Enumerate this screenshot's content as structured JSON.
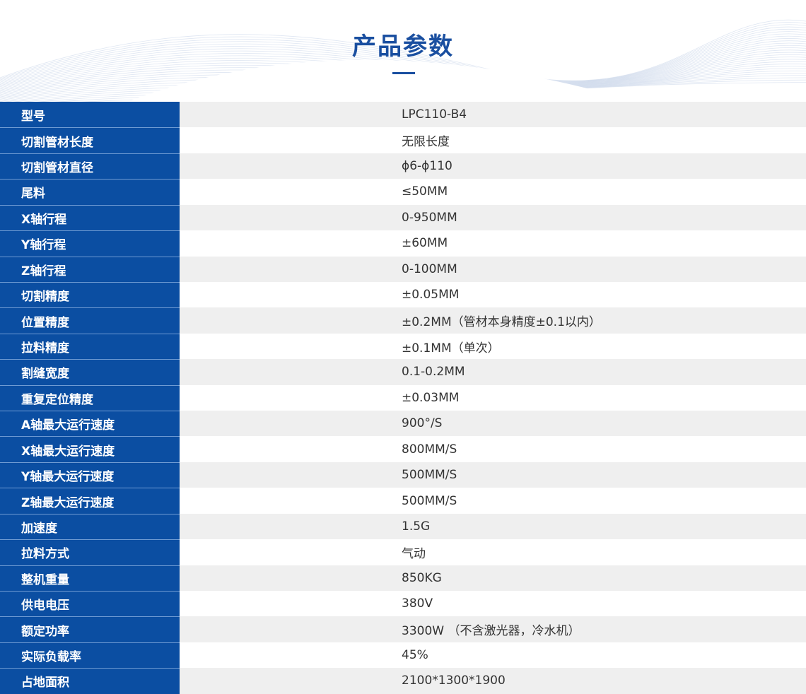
{
  "header": {
    "title": "产品参数"
  },
  "colors": {
    "accent": "#0b4ea2",
    "title": "#1a4fa0",
    "row_alt": "#efefef"
  },
  "specs": [
    {
      "label": "型号",
      "value": "LPC110-B4"
    },
    {
      "label": "切割管材长度",
      "value": "无限长度"
    },
    {
      "label": "切割管材直径",
      "value": "ϕ6-ϕ110"
    },
    {
      "label": "尾料",
      "value": "≤50MM"
    },
    {
      "label": "X轴行程",
      "value": "0-950MM"
    },
    {
      "label": "Y轴行程",
      "value": "±60MM"
    },
    {
      "label": "Z轴行程",
      "value": "0-100MM"
    },
    {
      "label": "切割精度",
      "value": "±0.05MM"
    },
    {
      "label": "位置精度",
      "value": "±0.2MM（管材本身精度±0.1以内）"
    },
    {
      "label": "拉料精度",
      "value": "±0.1MM（单次）"
    },
    {
      "label": "割缝宽度",
      "value": "0.1-0.2MM"
    },
    {
      "label": "重复定位精度",
      "value": "±0.03MM"
    },
    {
      "label": "A轴最大运行速度",
      "value": "900°/S"
    },
    {
      "label": "X轴最大运行速度",
      "value": "800MM/S"
    },
    {
      "label": "Y轴最大运行速度",
      "value": "500MM/S"
    },
    {
      "label": "Z轴最大运行速度",
      "value": "500MM/S"
    },
    {
      "label": "加速度",
      "value": "1.5G"
    },
    {
      "label": "拉料方式",
      "value": "气动"
    },
    {
      "label": "整机重量",
      "value": "850KG"
    },
    {
      "label": "供电电压",
      "value": "380V"
    },
    {
      "label": "额定功率",
      "value": "3300W （不含激光器，冷水机）"
    },
    {
      "label": "实际负载率",
      "value": "45%"
    },
    {
      "label": "占地面积",
      "value": "2100*1300*1900"
    }
  ]
}
